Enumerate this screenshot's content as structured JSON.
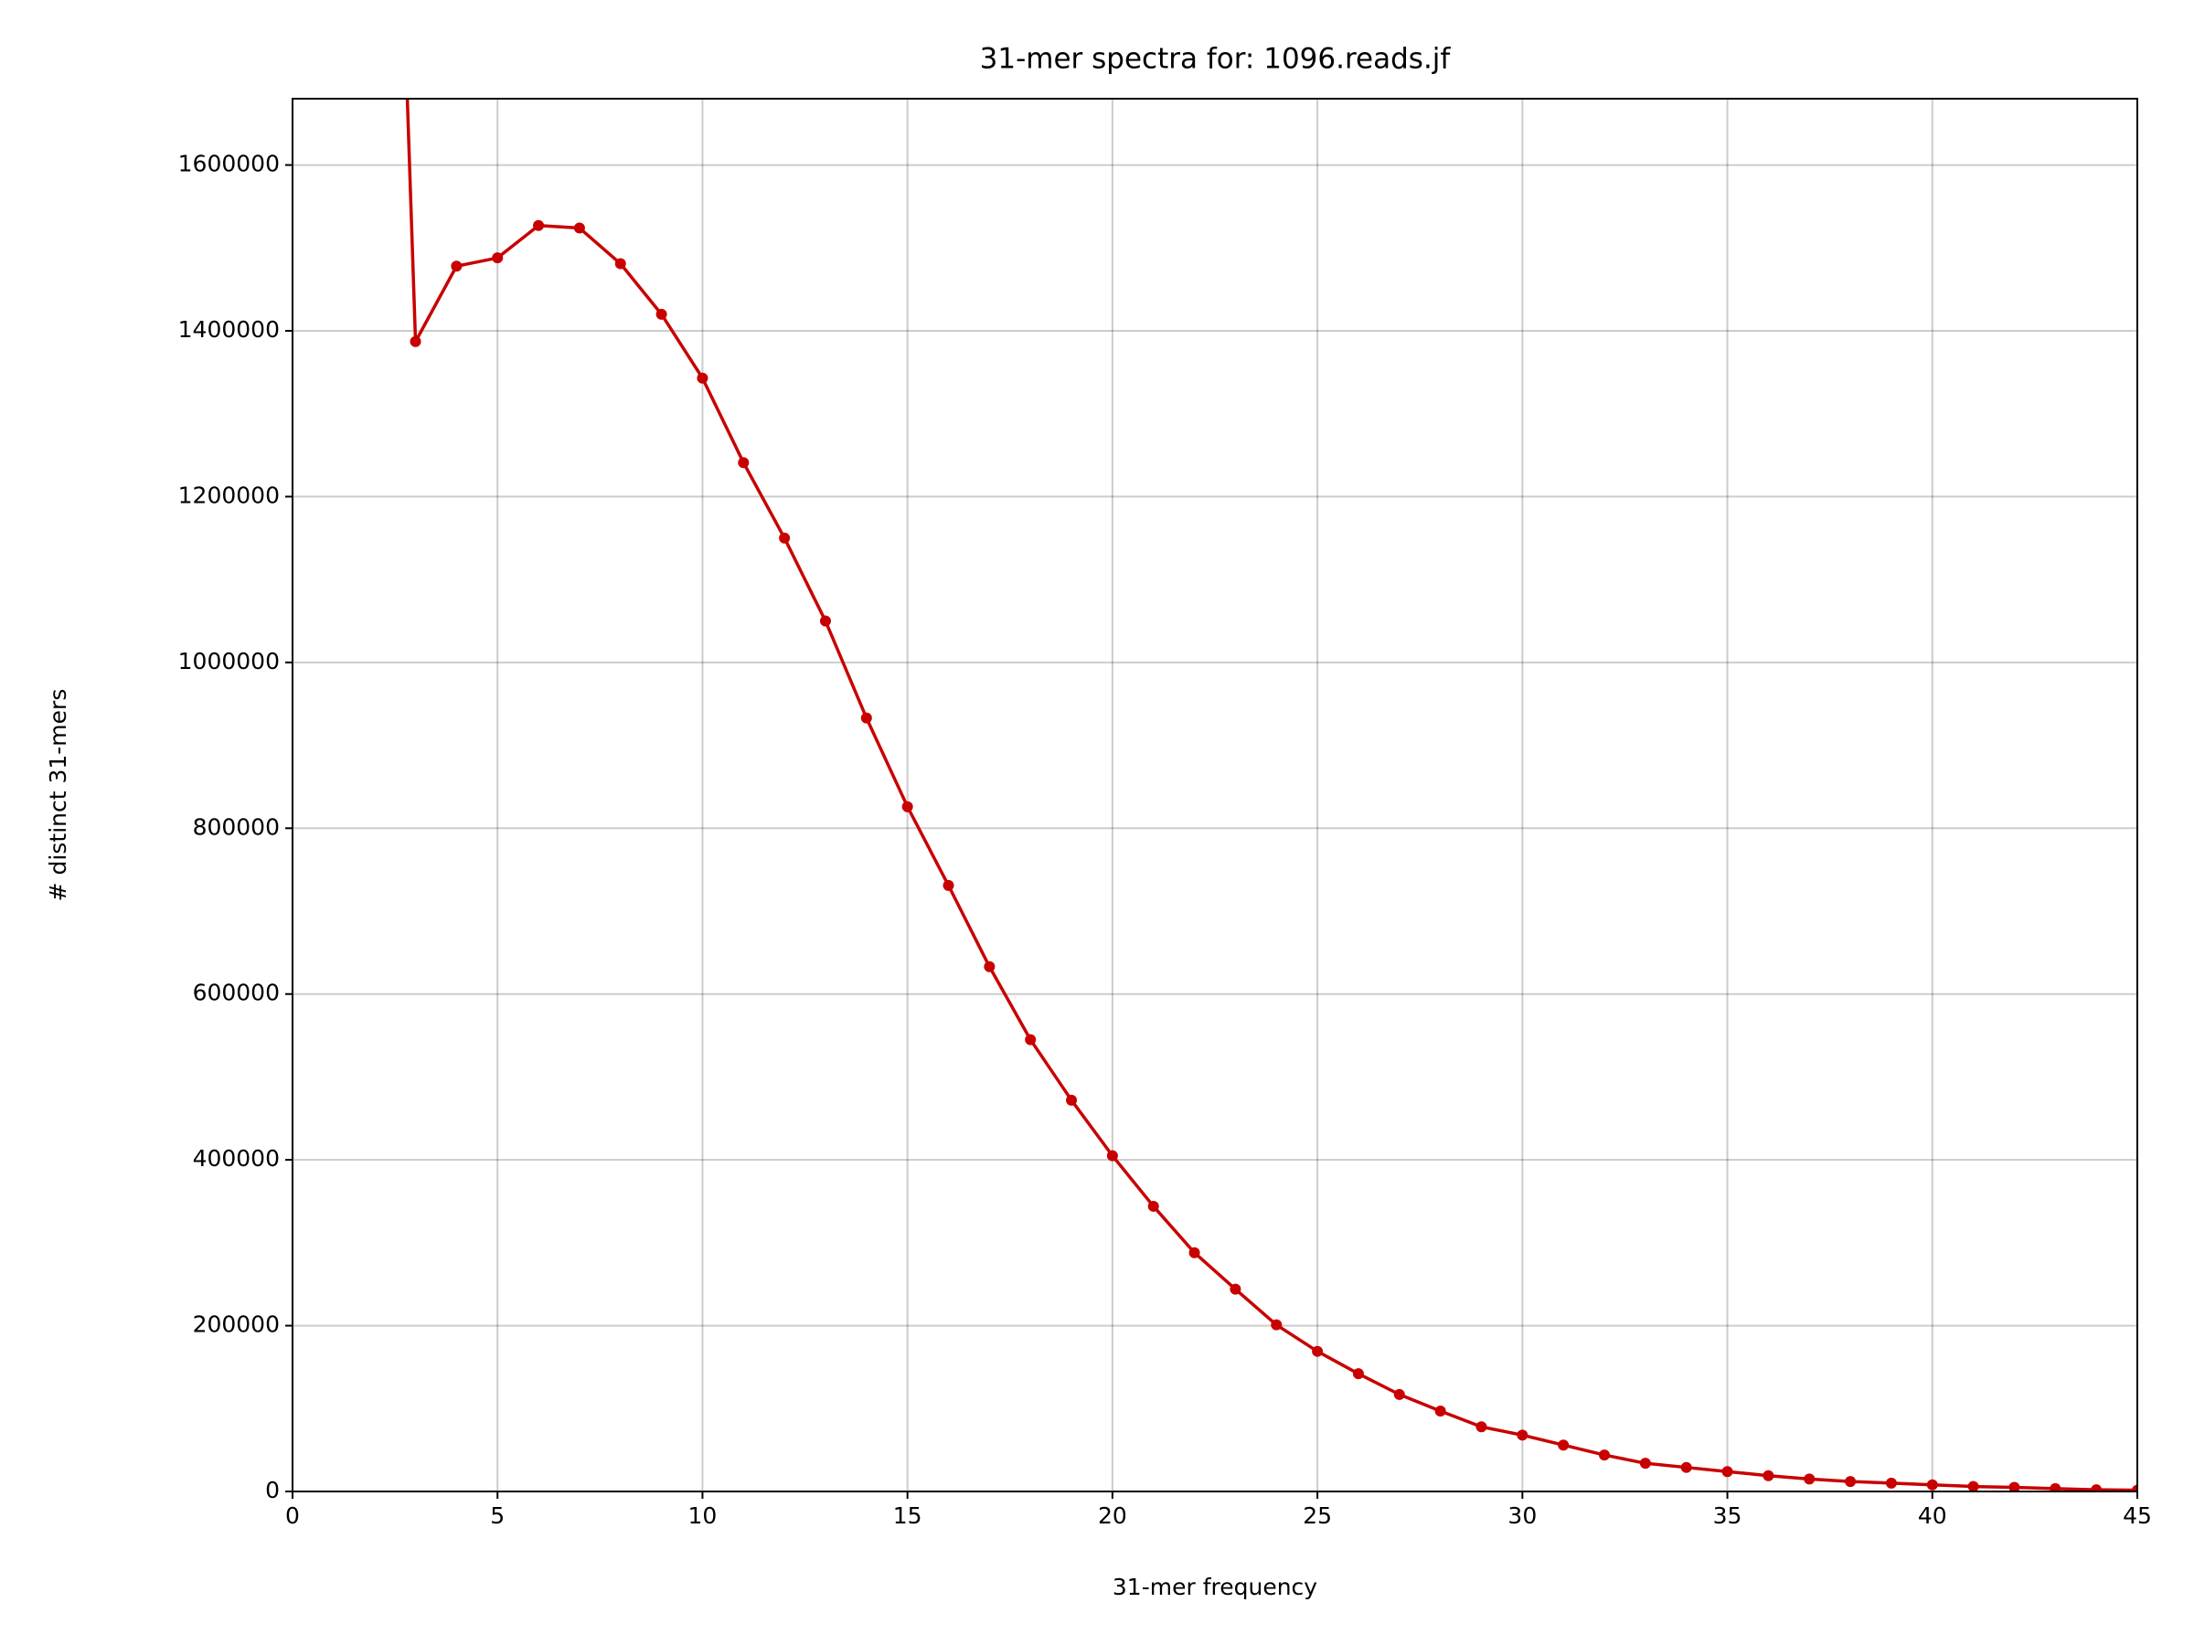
{
  "chart_data": {
    "type": "line",
    "title": "31-mer spectra for: 1096.reads.jf",
    "x_label": "31-mer frequency",
    "y_label": "# distinct 31-mers",
    "x": [
      2,
      3,
      4,
      5,
      6,
      7,
      8,
      9,
      10,
      11,
      12,
      13,
      14,
      15,
      16,
      17,
      18,
      19,
      20,
      21,
      22,
      23,
      24,
      25,
      26,
      27,
      28,
      29,
      30,
      31,
      32,
      33,
      34,
      35,
      36,
      37,
      38,
      39,
      40,
      41,
      42,
      43,
      44,
      45
    ],
    "values": [
      2850000,
      1387000,
      1478000,
      1488000,
      1527000,
      1524000,
      1481000,
      1420000,
      1343000,
      1241000,
      1150000,
      1050000,
      933000,
      826000,
      731000,
      633000,
      545000,
      472000,
      405000,
      344000,
      288000,
      244000,
      201000,
      169000,
      142000,
      117000,
      97000,
      78000,
      68000,
      56000,
      44000,
      34000,
      29000,
      24000,
      19000,
      15000,
      12000,
      10000,
      8000,
      6000,
      5000,
      3500,
      2000,
      1500
    ],
    "color": "#c80000",
    "xlim": [
      0,
      45
    ],
    "ylim": [
      0,
      1680000
    ],
    "xticks": [
      0,
      5,
      10,
      15,
      20,
      25,
      30,
      35,
      40,
      45
    ],
    "yticks": [
      0,
      200000,
      400000,
      600000,
      800000,
      1000000,
      1200000,
      1400000,
      1600000
    ],
    "grid": true
  }
}
